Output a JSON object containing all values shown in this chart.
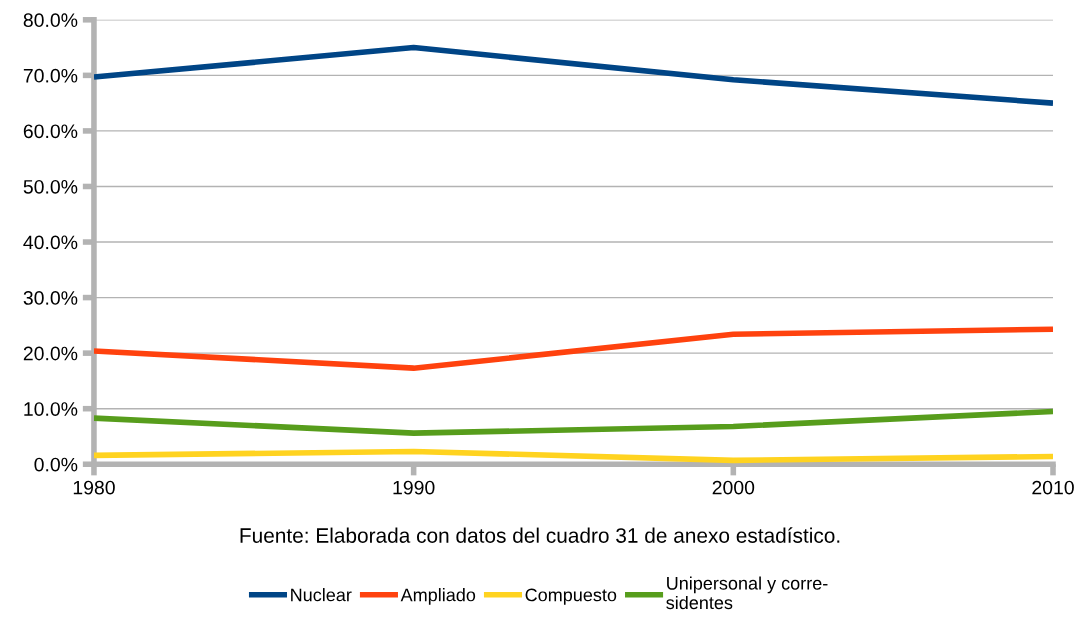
{
  "chart_data": {
    "type": "line",
    "x": [
      1980,
      1990,
      2000,
      2010
    ],
    "series": [
      {
        "name": "Nuclear",
        "color": "#004586",
        "values": [
          69.7,
          75.0,
          69.2,
          65.0
        ]
      },
      {
        "name": "Ampliado",
        "color": "#ff420e",
        "values": [
          20.4,
          17.3,
          23.4,
          24.3
        ]
      },
      {
        "name": "Compuesto",
        "color": "#ffd320",
        "values": [
          1.6,
          2.3,
          0.7,
          1.4
        ]
      },
      {
        "name": "Unipersonal y corre-\nsidentes",
        "color": "#579d1c",
        "values": [
          8.3,
          5.6,
          6.8,
          9.5
        ]
      }
    ],
    "xlim": [
      1980,
      2010
    ],
    "xticks": [
      1980,
      1990,
      2000,
      2010
    ],
    "ylim": [
      0,
      80
    ],
    "yticks": [
      {
        "value": 0,
        "label": "0.0%"
      },
      {
        "value": 10,
        "label": "10.0%"
      },
      {
        "value": 20,
        "label": "20.0%"
      },
      {
        "value": 30,
        "label": "30.0%"
      },
      {
        "value": 40,
        "label": "40.0%"
      },
      {
        "value": 50,
        "label": "50.0%"
      },
      {
        "value": 60,
        "label": "60.0%"
      },
      {
        "value": 70,
        "label": "70.0%"
      },
      {
        "value": 80,
        "label": "80.0%"
      }
    ],
    "grid": "y",
    "legend": "bottom",
    "marker": "none",
    "line_style": "solid",
    "annotations": [
      "Fuente: Elaborada con datos del cuadro 31 de anexo estadístico."
    ]
  }
}
